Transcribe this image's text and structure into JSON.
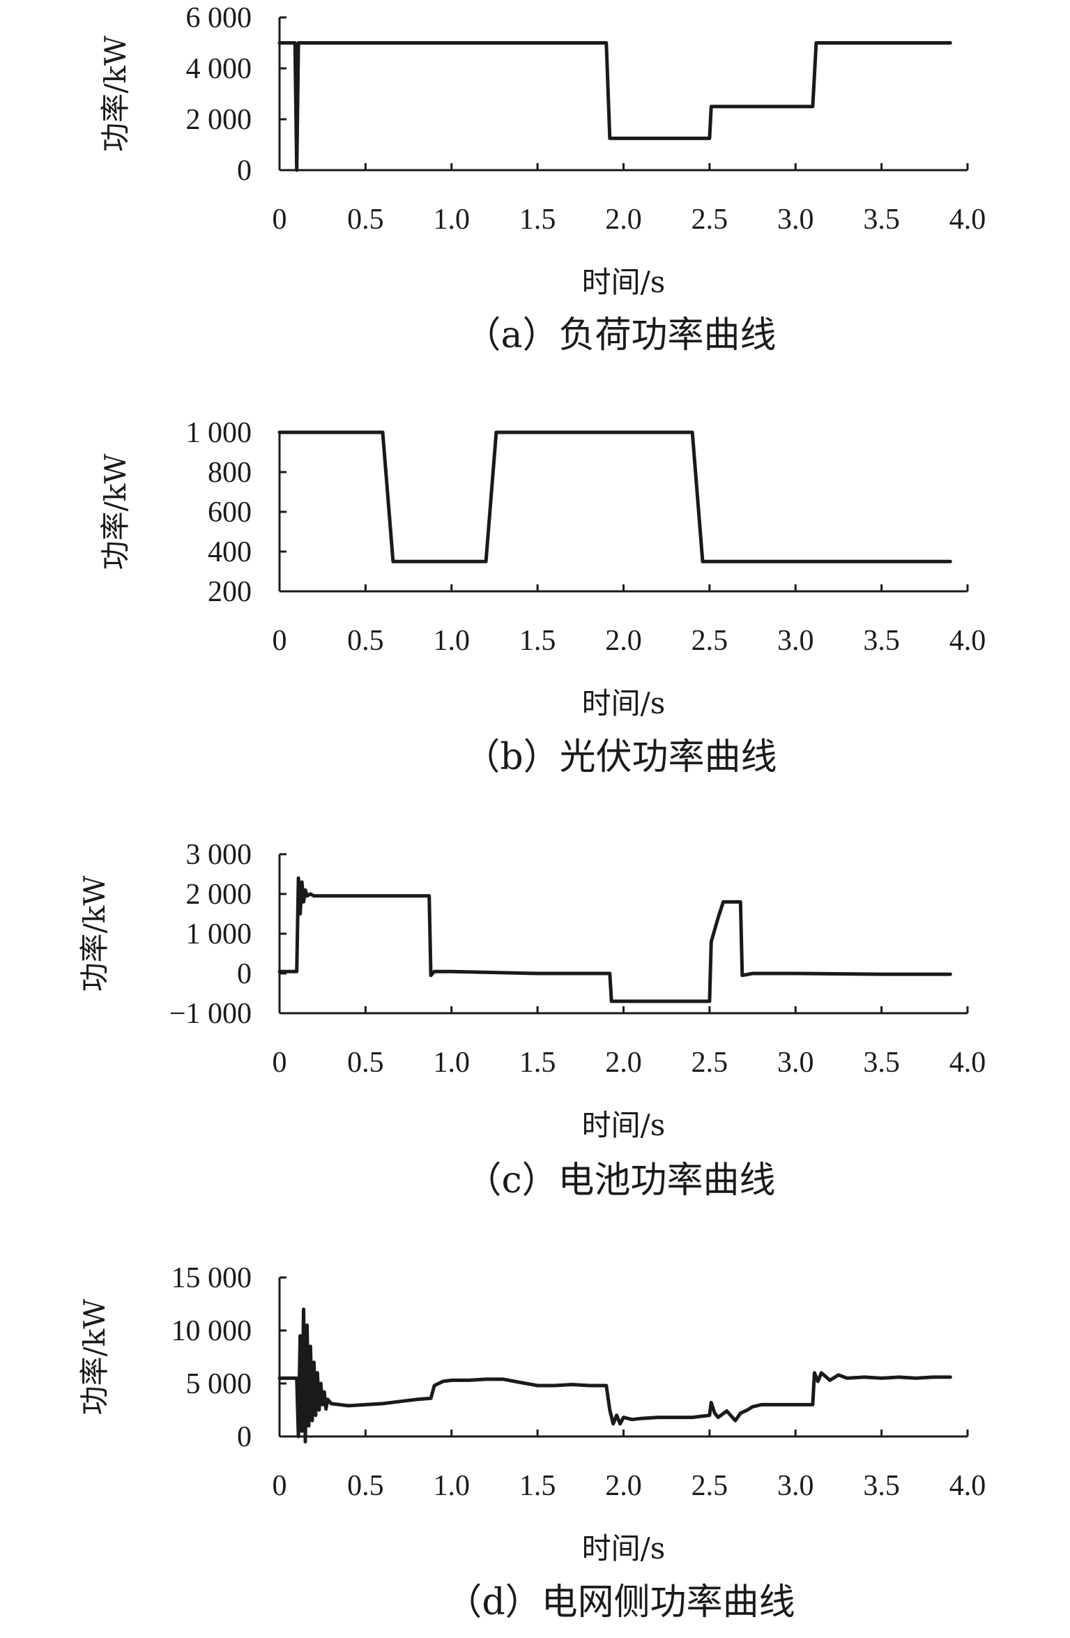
{
  "chart_data": [
    {
      "type": "line",
      "caption": "（a）负荷功率曲线",
      "xlabel": "时间/s",
      "ylabel": "功率/kW",
      "xlim": [
        0,
        4.0
      ],
      "ylim": [
        0,
        6000
      ],
      "xticks": [
        0,
        0.5,
        1.0,
        1.5,
        2.0,
        2.5,
        3.0,
        3.5,
        4.0
      ],
      "xtick_labels": [
        "0",
        "0.5",
        "1.0",
        "1.5",
        "2.0",
        "2.5",
        "3.0",
        "3.5",
        "4.0"
      ],
      "yticks": [
        0,
        2000,
        4000,
        6000
      ],
      "ytick_labels": [
        "0",
        "2 000",
        "4 000",
        "6 000"
      ],
      "series": [
        {
          "x": [
            0,
            0.09,
            0.1,
            0.11,
            0.12,
            1.9,
            1.92,
            2.5,
            2.51,
            3.1,
            3.12,
            3.9
          ],
          "y": [
            5000,
            5000,
            0,
            5000,
            5000,
            5000,
            1250,
            1250,
            2500,
            2500,
            5000,
            5000
          ]
        }
      ]
    },
    {
      "type": "line",
      "caption": "（b）光伏功率曲线",
      "xlabel": "时间/s",
      "ylabel": "功率/kW",
      "xlim": [
        0,
        4.0
      ],
      "ylim": [
        200,
        1000
      ],
      "xticks": [
        0,
        0.5,
        1.0,
        1.5,
        2.0,
        2.5,
        3.0,
        3.5,
        4.0
      ],
      "xtick_labels": [
        "0",
        "0.5",
        "1.0",
        "1.5",
        "2.0",
        "2.5",
        "3.0",
        "3.5",
        "4.0"
      ],
      "yticks": [
        200,
        400,
        600,
        800,
        1000
      ],
      "ytick_labels": [
        "200",
        "400",
        "600",
        "800",
        "1 000"
      ],
      "series": [
        {
          "x": [
            0,
            0.6,
            0.66,
            1.2,
            1.26,
            2.4,
            2.46,
            3.9
          ],
          "y": [
            1000,
            1000,
            350,
            350,
            1000,
            1000,
            350,
            350
          ]
        }
      ]
    },
    {
      "type": "line",
      "caption": "（c）电池功率曲线",
      "xlabel": "时间/s",
      "ylabel": "功率/kW",
      "xlim": [
        0,
        4.0
      ],
      "ylim": [
        -1000,
        3000
      ],
      "xticks": [
        0,
        0.5,
        1.0,
        1.5,
        2.0,
        2.5,
        3.0,
        3.5,
        4.0
      ],
      "xtick_labels": [
        "0",
        "0.5",
        "1.0",
        "1.5",
        "2.0",
        "2.5",
        "3.0",
        "3.5",
        "4.0"
      ],
      "yticks": [
        -1000,
        0,
        1000,
        2000,
        3000
      ],
      "ytick_labels": [
        "−1 000",
        "0",
        "1 000",
        "2 000",
        "3 000"
      ],
      "series": [
        {
          "x": [
            0,
            0.1,
            0.11,
            0.12,
            0.13,
            0.14,
            0.15,
            0.16,
            0.18,
            0.2,
            0.25,
            0.5,
            0.87,
            0.88,
            0.9,
            1.0,
            1.5,
            1.92,
            1.93,
            2.0,
            2.5,
            2.51,
            2.55,
            2.58,
            2.68,
            2.69,
            2.75,
            3.0,
            3.5,
            3.9
          ],
          "y": [
            50,
            50,
            2400,
            1500,
            2300,
            1800,
            2100,
            1950,
            2000,
            1950,
            1950,
            1950,
            1950,
            -50,
            50,
            50,
            0,
            0,
            -700,
            -700,
            -700,
            800,
            1400,
            1800,
            1800,
            -50,
            0,
            0,
            -20,
            -20
          ]
        }
      ]
    },
    {
      "type": "line",
      "caption": "（d）电网侧功率曲线",
      "xlabel": "时间/s",
      "ylabel": "功率/kW",
      "xlim": [
        0,
        4.0
      ],
      "ylim": [
        0,
        15000
      ],
      "xticks": [
        0,
        0.5,
        1.0,
        1.5,
        2.0,
        2.5,
        3.0,
        3.5,
        4.0
      ],
      "xtick_labels": [
        "0",
        "0.5",
        "1.0",
        "1.5",
        "2.0",
        "2.5",
        "3.0",
        "3.5",
        "4.0"
      ],
      "yticks": [
        0,
        5000,
        10000,
        15000
      ],
      "ytick_labels": [
        "0",
        "5 000",
        "10 000",
        "15 000"
      ],
      "series": [
        {
          "x": [
            0,
            0.1,
            0.11,
            0.12,
            0.13,
            0.14,
            0.15,
            0.16,
            0.17,
            0.18,
            0.19,
            0.2,
            0.21,
            0.22,
            0.23,
            0.24,
            0.25,
            0.26,
            0.27,
            0.28,
            0.3,
            0.35,
            0.4,
            0.5,
            0.6,
            0.7,
            0.8,
            0.88,
            0.9,
            0.95,
            1.0,
            1.1,
            1.2,
            1.3,
            1.4,
            1.5,
            1.6,
            1.7,
            1.8,
            1.9,
            1.92,
            1.94,
            1.96,
            1.98,
            2.0,
            2.05,
            2.1,
            2.2,
            2.3,
            2.4,
            2.5,
            2.51,
            2.53,
            2.55,
            2.6,
            2.65,
            2.68,
            2.72,
            2.75,
            2.8,
            2.9,
            3.0,
            3.1,
            3.11,
            3.13,
            3.15,
            3.2,
            3.25,
            3.3,
            3.4,
            3.5,
            3.6,
            3.7,
            3.8,
            3.9
          ],
          "y": [
            5500,
            5500,
            0,
            9500,
            500,
            12000,
            -500,
            10500,
            1000,
            8500,
            1500,
            7000,
            2000,
            6000,
            2500,
            5000,
            3000,
            4200,
            2600,
            3500,
            3100,
            3000,
            2900,
            3000,
            3100,
            3300,
            3500,
            3600,
            4800,
            5200,
            5300,
            5300,
            5400,
            5400,
            5100,
            4800,
            4800,
            4900,
            4800,
            4800,
            2500,
            1200,
            2000,
            1200,
            1800,
            1600,
            1700,
            1800,
            1800,
            1800,
            2000,
            3200,
            2200,
            1800,
            2400,
            1500,
            2200,
            2500,
            2800,
            3000,
            3000,
            3000,
            3000,
            6000,
            5200,
            6000,
            5300,
            5800,
            5500,
            5600,
            5500,
            5600,
            5500,
            5600,
            5600
          ]
        }
      ]
    }
  ]
}
